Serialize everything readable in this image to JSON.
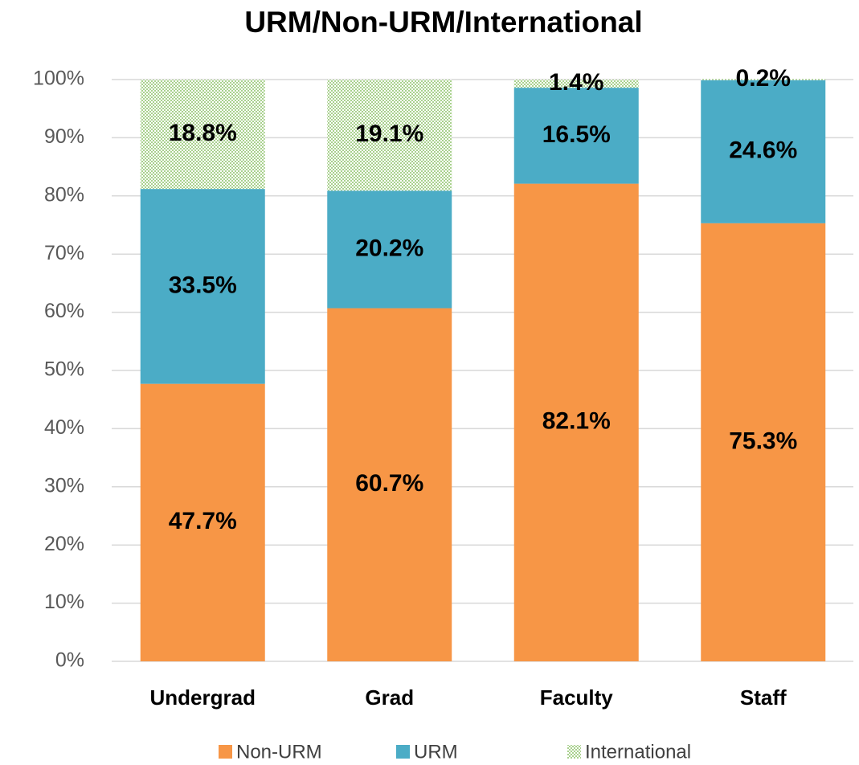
{
  "chart_data": {
    "type": "stacked_bar",
    "title": "URM/Non-URM/International",
    "categories": [
      "Undergrad",
      "Grad",
      "Faculty",
      "Staff"
    ],
    "series": [
      {
        "name": "Non-URM",
        "color": "#f79646",
        "values": [
          47.7,
          60.7,
          82.1,
          75.3
        ],
        "value_labels": [
          "47.7%",
          "60.7%",
          "82.1%",
          "75.3%"
        ]
      },
      {
        "name": "URM",
        "color": "#4bacc6",
        "values": [
          33.5,
          20.2,
          16.5,
          24.6
        ],
        "value_labels": [
          "33.5%",
          "20.2%",
          "16.5%",
          "24.6%"
        ]
      },
      {
        "name": "International",
        "color": "#c4e0b2",
        "values": [
          18.8,
          19.1,
          1.4,
          0.2
        ],
        "value_labels": [
          "18.8%",
          "19.1%",
          "1.4%",
          "0.2%"
        ]
      }
    ],
    "ylim": [
      0,
      100
    ],
    "yticks": [
      {
        "value": 0,
        "label": "0%"
      },
      {
        "value": 10,
        "label": "10%"
      },
      {
        "value": 20,
        "label": "20%"
      },
      {
        "value": 30,
        "label": "30%"
      },
      {
        "value": 40,
        "label": "40%"
      },
      {
        "value": 50,
        "label": "50%"
      },
      {
        "value": 60,
        "label": "60%"
      },
      {
        "value": 70,
        "label": "70%"
      },
      {
        "value": 80,
        "label": "80%"
      },
      {
        "value": 90,
        "label": "90%"
      },
      {
        "value": 100,
        "label": "100%"
      }
    ],
    "grid": true,
    "legend": "bottom"
  }
}
